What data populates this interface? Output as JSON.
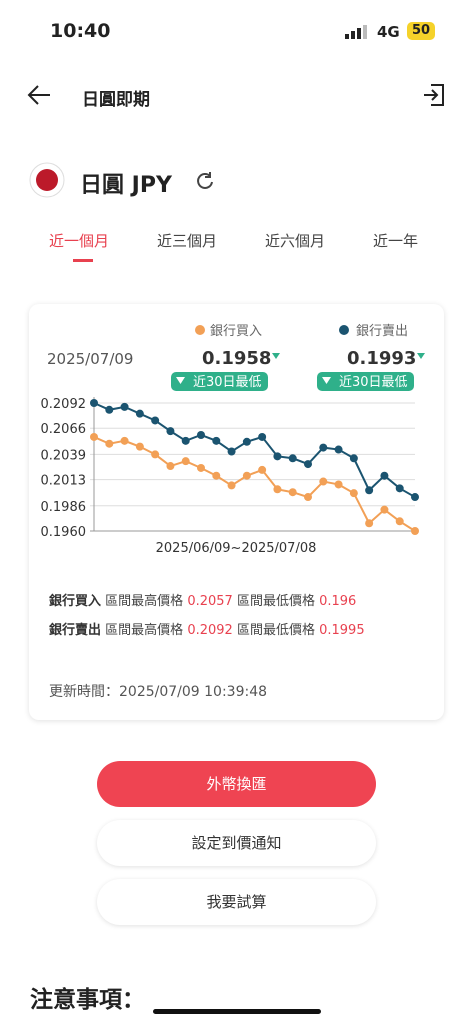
{
  "status_bar": {
    "time": "10:40",
    "network": "4G",
    "battery": "50"
  },
  "header": {
    "title": "日圓即期"
  },
  "currency": {
    "name": "日圓 JPY"
  },
  "tabs": [
    "近一個月",
    "近三個月",
    "近六個月",
    "近一年"
  ],
  "chart_data": {
    "type": "line",
    "date": "2025/07/09",
    "x_label": "2025/06/09~2025/07/08",
    "series": [
      {
        "name": "銀行買入",
        "color": "#f2a056",
        "current": "0.1958",
        "badge": "近30日最低",
        "values": [
          0.2057,
          0.205,
          0.2053,
          0.2047,
          0.2039,
          0.2027,
          0.2032,
          0.2025,
          0.2017,
          0.2007,
          0.2017,
          0.2023,
          0.2003,
          0.2,
          0.1995,
          0.2011,
          0.2008,
          0.1999,
          0.1968,
          0.1982,
          0.197,
          0.196
        ]
      },
      {
        "name": "銀行賣出",
        "color": "#1b5470",
        "current": "0.1993",
        "badge": "近30日最低",
        "values": [
          0.2092,
          0.2085,
          0.2088,
          0.2081,
          0.2074,
          0.2063,
          0.2053,
          0.2059,
          0.2053,
          0.2042,
          0.2052,
          0.2057,
          0.2037,
          0.2035,
          0.2029,
          0.2046,
          0.2044,
          0.2035,
          0.2002,
          0.2017,
          0.2004,
          0.1995
        ]
      }
    ],
    "ylim": [
      0.196,
      0.2092
    ],
    "yticks": [
      0.2092,
      0.2066,
      0.2039,
      0.2013,
      0.1986,
      {
        "value": 0.196,
        "label": "0.1960"
      }
    ],
    "grid": true
  },
  "stats": [
    {
      "label": "銀行買入",
      "high_label": "區間最高價格",
      "high": "0.2057",
      "low_label": "區間最低價格",
      "low": "0.196"
    },
    {
      "label": "銀行賣出",
      "high_label": "區間最高價格",
      "high": "0.2092",
      "low_label": "區間最低價格",
      "low": "0.1995"
    }
  ],
  "update_time": "更新時間：2025/07/09 10:39:48",
  "buttons": [
    "外幣換匯",
    "設定到價通知",
    "我要試算"
  ],
  "notice": {
    "title": "注意事項："
  }
}
